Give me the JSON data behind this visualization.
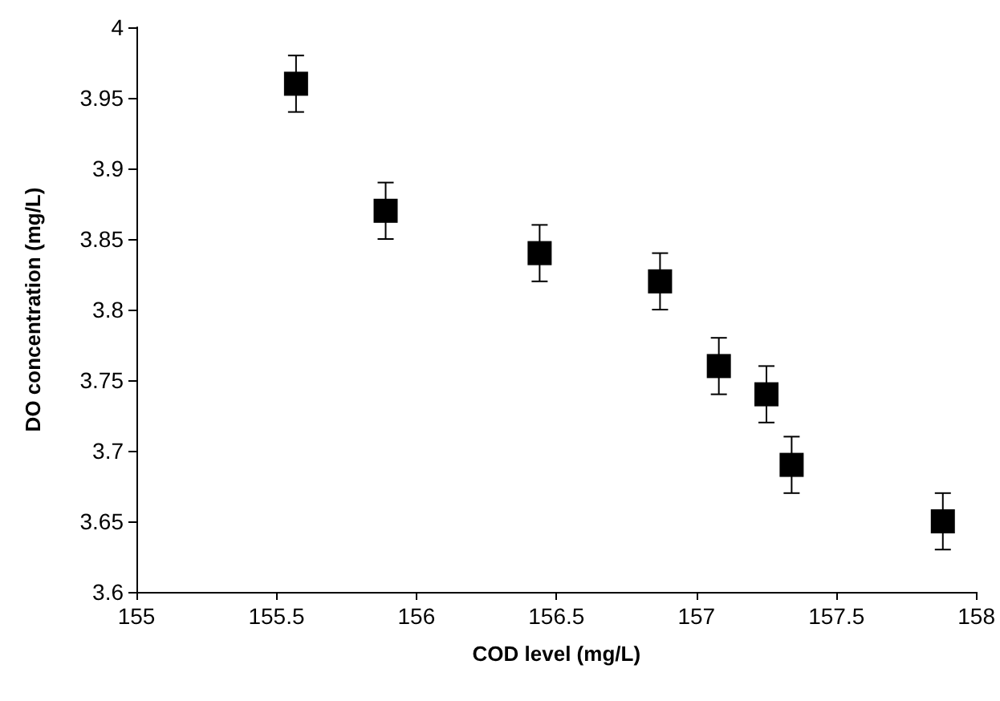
{
  "chart_data": {
    "type": "scatter",
    "xlabel": "COD level (mg/L)",
    "ylabel": "DO concentration (mg/L)",
    "x": [
      155.57,
      155.89,
      156.44,
      156.87,
      157.08,
      157.25,
      157.34,
      157.88
    ],
    "values": [
      3.96,
      3.87,
      3.84,
      3.82,
      3.76,
      3.74,
      3.69,
      3.65
    ],
    "errors": [
      0.02,
      0.02,
      0.02,
      0.02,
      0.02,
      0.02,
      0.02,
      0.02
    ],
    "color": "#000000",
    "marker": "square",
    "xlim": [
      155,
      158
    ],
    "xticks": [
      155,
      155.5,
      156,
      156.5,
      157,
      157.5,
      158
    ],
    "ylim": [
      3.6,
      4
    ],
    "yticks": [
      3.6,
      3.65,
      3.7,
      3.75,
      3.8,
      3.85,
      3.9,
      3.95,
      4
    ],
    "grid": false
  }
}
